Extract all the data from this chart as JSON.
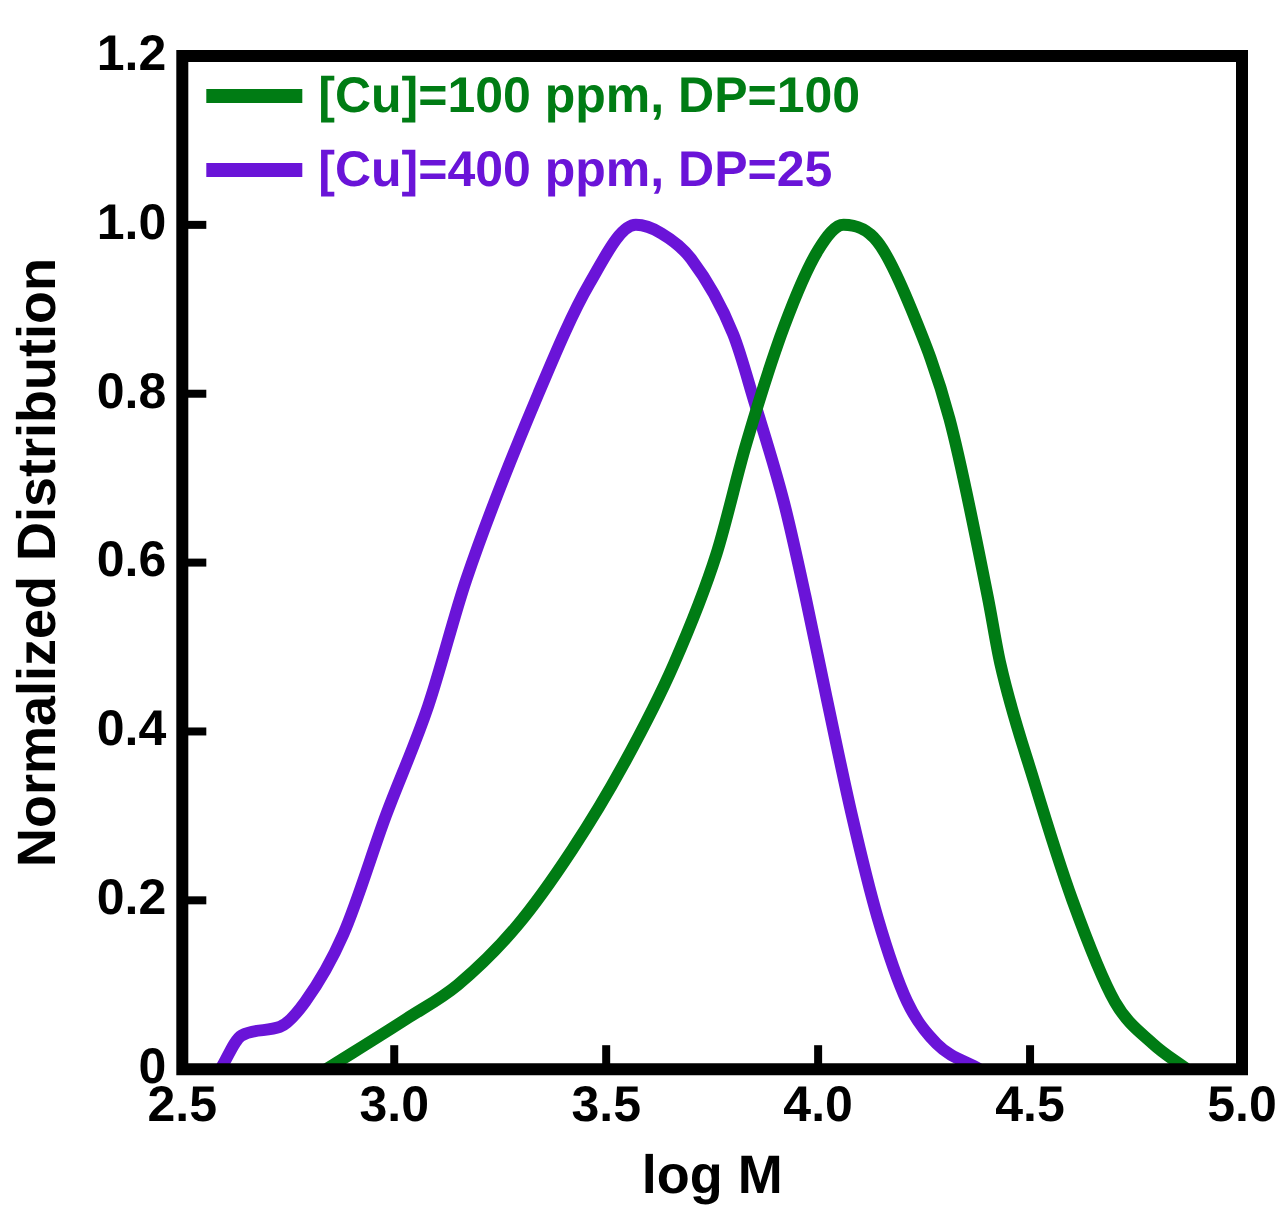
{
  "chart_data": {
    "type": "line",
    "xlabel": "log M",
    "ylabel": "Normalized Distribution",
    "xlim": [
      2.5,
      5.0
    ],
    "xticks": [
      {
        "value": 2.5,
        "label": "2.5"
      },
      {
        "value": 3,
        "label": "3.0"
      },
      {
        "value": 3.5,
        "label": "3.5"
      },
      {
        "value": 4,
        "label": "4.0"
      },
      {
        "value": 4.5,
        "label": "4.5"
      },
      {
        "value": 5,
        "label": "5.0"
      }
    ],
    "ylim": [
      0,
      1.2
    ],
    "yticks": [
      0,
      {
        "value": 0.2,
        "label": "0.2"
      },
      {
        "value": 0.4,
        "label": "0.4"
      },
      {
        "value": 0.6,
        "label": "0.6"
      },
      {
        "value": 0.8,
        "label": "0.8"
      },
      {
        "value": 1,
        "label": "1.0"
      },
      {
        "value": 1.2,
        "label": "1.2"
      }
    ],
    "grid": false,
    "legend": "top left",
    "marker": "none",
    "line_style": "solid",
    "series": [
      {
        "name": "[Cu]=100 ppm, DP=100",
        "color": "#007c14",
        "x": [
          2.84,
          3.03,
          3.15,
          3.29,
          3.42,
          3.54,
          3.66,
          3.76,
          3.83,
          3.92,
          4.0,
          4.06,
          4.14,
          4.22,
          4.31,
          4.4,
          4.43,
          4.51,
          4.6,
          4.7,
          4.79,
          4.87
        ],
        "values": [
          0.0,
          0.06,
          0.1,
          0.17,
          0.26,
          0.36,
          0.48,
          0.61,
          0.74,
          0.88,
          0.97,
          1.0,
          0.98,
          0.9,
          0.77,
          0.56,
          0.48,
          0.34,
          0.2,
          0.08,
          0.03,
          0.0
        ]
      },
      {
        "name": "[Cu]=400 ppm, DP=25",
        "color": "#6a14d8",
        "x": [
          2.59,
          2.64,
          2.73,
          2.79,
          2.88,
          2.98,
          3.08,
          3.17,
          3.34,
          3.46,
          3.57,
          3.63,
          3.7,
          3.8,
          3.85,
          3.92,
          3.97,
          4.02,
          4.08,
          4.14,
          4.21,
          4.28,
          4.38
        ],
        "values": [
          0.0,
          0.04,
          0.05,
          0.08,
          0.16,
          0.3,
          0.43,
          0.58,
          0.8,
          0.93,
          1.0,
          0.99,
          0.96,
          0.87,
          0.79,
          0.67,
          0.56,
          0.44,
          0.3,
          0.18,
          0.08,
          0.03,
          0.0
        ]
      }
    ]
  }
}
